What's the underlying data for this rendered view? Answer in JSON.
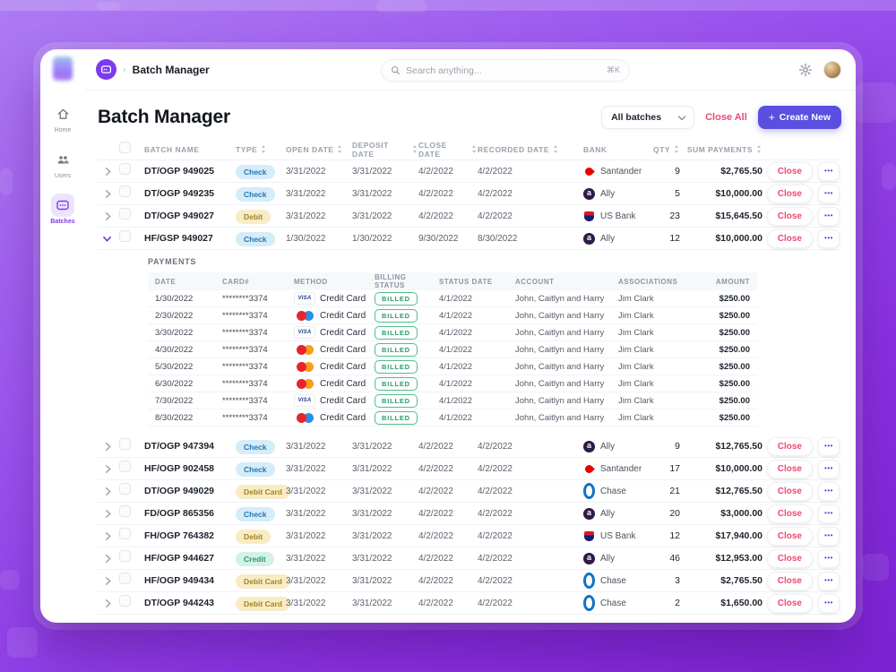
{
  "topbar": {
    "breadcrumb": "Batch Manager",
    "breadcrumb_sep": "›",
    "search_placeholder": "Search anything...",
    "search_shortcut": "⌘K"
  },
  "sidebar": {
    "items": [
      {
        "label": "Home",
        "icon": "home-icon",
        "active": false
      },
      {
        "label": "Users",
        "icon": "users-icon",
        "active": false
      },
      {
        "label": "Batches",
        "icon": "batches-icon",
        "active": true
      }
    ]
  },
  "header": {
    "title": "Batch Manager",
    "filter_value": "All batches",
    "close_all_label": "Close All",
    "create_new_icon": "+",
    "create_new_label": "Create New"
  },
  "table": {
    "action_label": "Close",
    "menu_icon": "ellipsis",
    "headers": [
      {
        "label": "BATCH NAME",
        "sortable": false
      },
      {
        "label": "TYPE",
        "sortable": true
      },
      {
        "label": "OPEN DATE",
        "sortable": true
      },
      {
        "label": "DEPOSIT DATE",
        "sortable": true
      },
      {
        "label": "CLOSE DATE",
        "sortable": true
      },
      {
        "label": "RECORDED DATE",
        "sortable": true
      },
      {
        "label": "BANK",
        "sortable": false
      },
      {
        "label": "QTY",
        "sortable": true
      },
      {
        "label": "SUM PAYMENTS",
        "sortable": true
      }
    ],
    "rows": [
      {
        "expanded": false,
        "name": "DT/OGP 949025",
        "type": "Check",
        "type_class": "blue",
        "open": "3/31/2022",
        "deposit": "3/31/2022",
        "close": "4/2/2022",
        "recorded": "4/2/2022",
        "bank": "Santander",
        "bank_icon": "santander",
        "qty": "9",
        "sum": "$2,765.50"
      },
      {
        "expanded": false,
        "name": "DT/OGP 949235",
        "type": "Check",
        "type_class": "blue",
        "open": "3/31/2022",
        "deposit": "3/31/2022",
        "close": "4/2/2022",
        "recorded": "4/2/2022",
        "bank": "Ally",
        "bank_icon": "ally",
        "qty": "5",
        "sum": "$10,000.00"
      },
      {
        "expanded": false,
        "name": "DT/OGP 949027",
        "type": "Debit",
        "type_class": "yellow",
        "open": "3/31/2022",
        "deposit": "3/31/2022",
        "close": "4/2/2022",
        "recorded": "4/2/2022",
        "bank": "US Bank",
        "bank_icon": "usbank",
        "qty": "23",
        "sum": "$15,645.50"
      },
      {
        "expanded": true,
        "name": "HF/GSP 949027",
        "type": "Check",
        "type_class": "blue",
        "open": "1/30/2022",
        "deposit": "1/30/2022",
        "close": "9/30/2022",
        "recorded": "8/30/2022",
        "bank": "Ally",
        "bank_icon": "ally",
        "qty": "12",
        "sum": "$10,000.00"
      },
      {
        "expanded": false,
        "name": "DT/OGP 947394",
        "type": "Check",
        "type_class": "blue",
        "open": "3/31/2022",
        "deposit": "3/31/2022",
        "close": "4/2/2022",
        "recorded": "4/2/2022",
        "bank": "Ally",
        "bank_icon": "ally",
        "qty": "9",
        "sum": "$12,765.50"
      },
      {
        "expanded": false,
        "name": "HF/OGP 902458",
        "type": "Check",
        "type_class": "blue",
        "open": "3/31/2022",
        "deposit": "3/31/2022",
        "close": "4/2/2022",
        "recorded": "4/2/2022",
        "bank": "Santander",
        "bank_icon": "santander",
        "qty": "17",
        "sum": "$10,000.00"
      },
      {
        "expanded": false,
        "name": "DT/OGP 949029",
        "type": "Debit Card",
        "type_class": "yellow",
        "open": "3/31/2022",
        "deposit": "3/31/2022",
        "close": "4/2/2022",
        "recorded": "4/2/2022",
        "bank": "Chase",
        "bank_icon": "chase",
        "qty": "21",
        "sum": "$12,765.50"
      },
      {
        "expanded": false,
        "name": "FD/OGP 865356",
        "type": "Check",
        "type_class": "blue",
        "open": "3/31/2022",
        "deposit": "3/31/2022",
        "close": "4/2/2022",
        "recorded": "4/2/2022",
        "bank": "Ally",
        "bank_icon": "ally",
        "qty": "20",
        "sum": "$3,000.00"
      },
      {
        "expanded": false,
        "name": "FH/OGP 764382",
        "type": "Debit",
        "type_class": "yellow",
        "open": "3/31/2022",
        "deposit": "3/31/2022",
        "close": "4/2/2022",
        "recorded": "4/2/2022",
        "bank": "US Bank",
        "bank_icon": "usbank",
        "qty": "12",
        "sum": "$17,940.00"
      },
      {
        "expanded": false,
        "name": "HF/OGP 944627",
        "type": "Credit",
        "type_class": "green",
        "open": "3/31/2022",
        "deposit": "3/31/2022",
        "close": "4/2/2022",
        "recorded": "4/2/2022",
        "bank": "Ally",
        "bank_icon": "ally",
        "qty": "46",
        "sum": "$12,953.00"
      },
      {
        "expanded": false,
        "name": "HF/OGP 949434",
        "type": "Debit Card",
        "type_class": "yellow",
        "open": "3/31/2022",
        "deposit": "3/31/2022",
        "close": "4/2/2022",
        "recorded": "4/2/2022",
        "bank": "Chase",
        "bank_icon": "chase",
        "qty": "3",
        "sum": "$2,765.50"
      },
      {
        "expanded": false,
        "name": "DT/OGP 944243",
        "type": "Debit Card",
        "type_class": "yellow",
        "open": "3/31/2022",
        "deposit": "3/31/2022",
        "close": "4/2/2022",
        "recorded": "4/2/2022",
        "bank": "Chase",
        "bank_icon": "chase",
        "qty": "2",
        "sum": "$1,650.00"
      }
    ]
  },
  "payments": {
    "title": "PAYMENTS",
    "headers": [
      "DATE",
      "CARD#",
      "METHOD",
      "BILLING STATUS",
      "STATUS DATE",
      "ACCOUNT",
      "ASSOCIATIONS",
      "AMOUNT"
    ],
    "rows": [
      {
        "date": "1/30/2022",
        "card": "********3374",
        "brand": "visa",
        "method": "Credit Card",
        "status": "BILLED",
        "status_date": "4/1/2022",
        "account": "John, Caitlyn and Harry",
        "associations": "Jim Clark",
        "amount": "$250.00"
      },
      {
        "date": "2/30/2022",
        "card": "********3374",
        "brand": "mc-blue",
        "method": "Credit Card",
        "status": "BILLED",
        "status_date": "4/1/2022",
        "account": "John, Caitlyn and Harry",
        "associations": "Jim Clark",
        "amount": "$250.00"
      },
      {
        "date": "3/30/2022",
        "card": "********3374",
        "brand": "visa",
        "method": "Credit Card",
        "status": "BILLED",
        "status_date": "4/1/2022",
        "account": "John, Caitlyn and Harry",
        "associations": "Jim Clark",
        "amount": "$250.00"
      },
      {
        "date": "4/30/2022",
        "card": "********3374",
        "brand": "mc-orange",
        "method": "Credit Card",
        "status": "BILLED",
        "status_date": "4/1/2022",
        "account": "John, Caitlyn and Harry",
        "associations": "Jim Clark",
        "amount": "$250.00"
      },
      {
        "date": "5/30/2022",
        "card": "********3374",
        "brand": "mc-orange",
        "method": "Credit Card",
        "status": "BILLED",
        "status_date": "4/1/2022",
        "account": "John, Caitlyn and Harry",
        "associations": "Jim Clark",
        "amount": "$250.00"
      },
      {
        "date": "6/30/2022",
        "card": "********3374",
        "brand": "mc-orange",
        "method": "Credit Card",
        "status": "BILLED",
        "status_date": "4/1/2022",
        "account": "John, Caitlyn and Harry",
        "associations": "Jim Clark",
        "amount": "$250.00"
      },
      {
        "date": "7/30/2022",
        "card": "********3374",
        "brand": "visa",
        "method": "Credit Card",
        "status": "BILLED",
        "status_date": "4/1/2022",
        "account": "John, Caitlyn and Harry",
        "associations": "Jim Clark",
        "amount": "$250.00"
      },
      {
        "date": "8/30/2022",
        "card": "********3374",
        "brand": "mc-blue",
        "method": "Credit Card",
        "status": "BILLED",
        "status_date": "4/1/2022",
        "account": "John, Caitlyn and Harry",
        "associations": "Jim Clark",
        "amount": "$250.00"
      }
    ]
  },
  "colors": {
    "accent_purple": "#7c3aed",
    "create_button": "#5a4fe0",
    "danger_red": "#ee4a73",
    "billed_green": "#2aa06b",
    "badge_check_bg": "#d5ecf9",
    "badge_check_text": "#2278b5",
    "badge_debit_bg": "#f8ecc6",
    "badge_debit_text": "#a7841f",
    "badge_credit_bg": "#d3f1e4",
    "badge_credit_text": "#259a71"
  }
}
